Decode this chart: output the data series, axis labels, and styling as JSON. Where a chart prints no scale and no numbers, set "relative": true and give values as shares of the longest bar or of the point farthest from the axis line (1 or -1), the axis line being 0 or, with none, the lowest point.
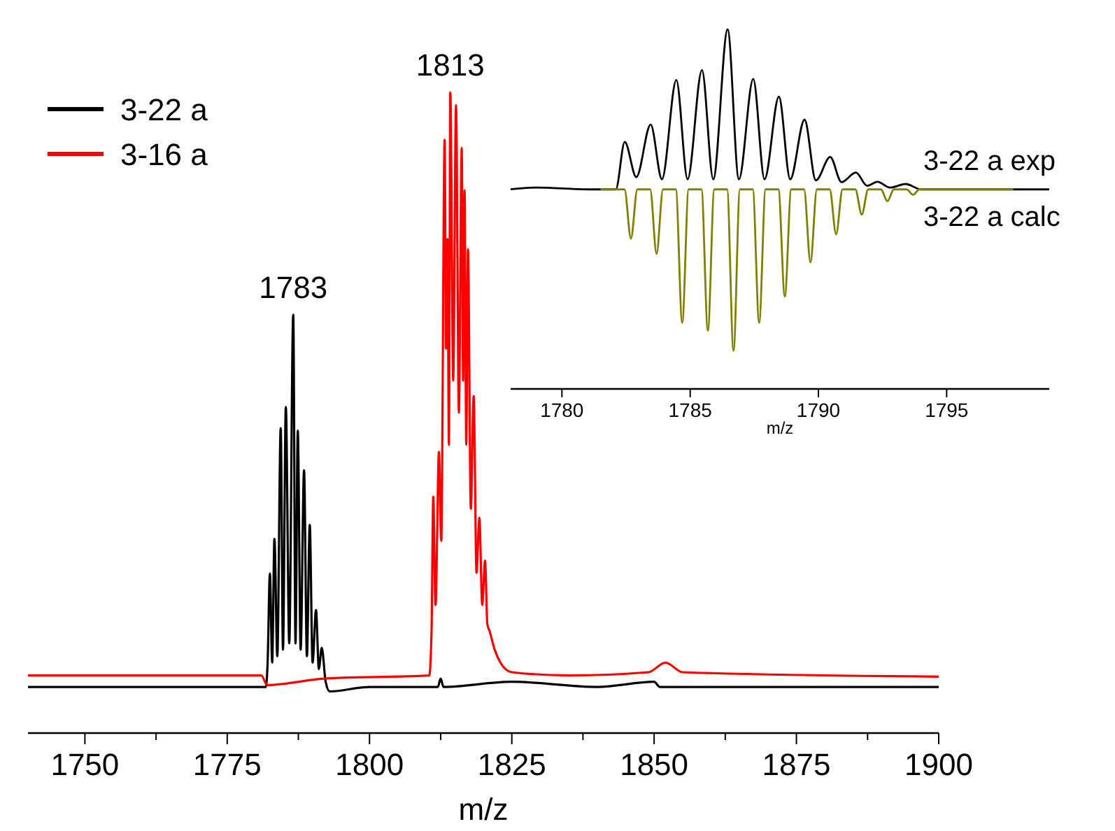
{
  "chart_data": [
    {
      "type": "line",
      "xlabel": "m/z",
      "relative": true,
      "xlim": [
        1740,
        1900
      ],
      "xticks": [
        1750,
        {
          "value": 1762.5,
          "label": null
        },
        1775,
        {
          "value": 1787.5,
          "label": null
        },
        1800,
        {
          "value": 1812.5,
          "label": null
        },
        1825,
        {
          "value": 1837.5,
          "label": null
        },
        1850,
        {
          "value": 1862.5,
          "label": null
        },
        1875,
        {
          "value": 1887.5,
          "label": null
        },
        1900
      ],
      "legend": "top left",
      "grid": false,
      "annotations": [
        {
          "text": "1783",
          "x": 1786.6,
          "y": 0.653
        },
        {
          "text": "1813",
          "x": 1814.2,
          "y": 1
        }
      ],
      "series": [
        {
          "name": "3-22 a",
          "color": "#000000",
          "x": [
            1740,
            1760,
            1781.8,
            1782.1,
            1782.5,
            1782.9,
            1783.3,
            1783.8,
            1784.4,
            1784.8,
            1785.3,
            1785.9,
            1786.6,
            1787.0,
            1787.4,
            1787.9,
            1788.5,
            1789.0,
            1789.5,
            1790.0,
            1790.6,
            1791.1,
            1791.6,
            1792.3,
            1793,
            1800,
            1812,
            1812.5,
            1813,
            1825,
            1840,
            1850,
            1851,
            1900
          ],
          "values": [
            0.072,
            0.072,
            0.072,
            0.11,
            0.249,
            0.11,
            0.303,
            0.12,
            0.476,
            0.13,
            0.509,
            0.14,
            0.653,
            0.14,
            0.472,
            0.13,
            0.41,
            0.12,
            0.325,
            0.11,
            0.192,
            0.1,
            0.133,
            0.08,
            0.065,
            0.072,
            0.072,
            0.085,
            0.072,
            0.08,
            0.072,
            0.08,
            0.072,
            0.072
          ]
        },
        {
          "name": "3-16 a",
          "color": "#ff0000",
          "x": [
            1740,
            1781,
            1782,
            1792,
            1810.5,
            1810.9,
            1811.2,
            1811.6,
            1812.2,
            1812.6,
            1813.2,
            1813.45,
            1813.7,
            1813.95,
            1814.2,
            1814.7,
            1815.2,
            1815.7,
            1816.2,
            1816.45,
            1816.7,
            1817.0,
            1817.3,
            1817.8,
            1818.3,
            1818.8,
            1819.3,
            1819.8,
            1820.3,
            1820.7,
            1821.1,
            1822,
            1823,
            1825,
            1835,
            1849,
            1852,
            1855,
            1900
          ],
          "values": [
            0.09,
            0.09,
            0.075,
            0.085,
            0.09,
            0.16,
            0.369,
            0.2,
            0.439,
            0.3,
            0.926,
            0.6,
            0.771,
            0.45,
            1,
            0.55,
            0.98,
            0.5,
            0.913,
            0.55,
            0.847,
            0.45,
            0.755,
            0.35,
            0.526,
            0.25,
            0.336,
            0.2,
            0.269,
            0.17,
            0.159,
            0.13,
            0.11,
            0.095,
            0.09,
            0.095,
            0.11,
            0.095,
            0.088
          ]
        }
      ]
    },
    {
      "type": "line",
      "xlabel": "m/z",
      "relative": true,
      "xlim": [
        1778,
        1799
      ],
      "xticks": [
        1780,
        1785,
        1790,
        1795
      ],
      "legend": false,
      "grid": false,
      "series": [
        {
          "name": "3-22 a exp",
          "color": "#000000",
          "x": [
            1778,
            1779,
            1781,
            1782.1,
            1782.45,
            1782.9,
            1783.46,
            1783.9,
            1784.46,
            1784.9,
            1785.46,
            1785.9,
            1786.46,
            1786.9,
            1787.46,
            1787.9,
            1788.46,
            1788.9,
            1789.46,
            1789.9,
            1790.46,
            1790.9,
            1791.46,
            1791.9,
            1792.3,
            1792.8,
            1793.4,
            1794,
            1799
          ],
          "values": [
            0.555,
            0.56,
            0.555,
            0.555,
            0.687,
            0.589,
            0.735,
            0.583,
            0.859,
            0.583,
            0.887,
            0.583,
            1.0,
            0.583,
            0.862,
            0.583,
            0.813,
            0.583,
            0.749,
            0.58,
            0.645,
            0.575,
            0.602,
            0.565,
            0.576,
            0.56,
            0.57,
            0.555,
            0.555
          ]
        },
        {
          "name": "3-22 a calc",
          "color": "#808000",
          "x": [
            1781.5,
            1782.44,
            1782.69,
            1782.94,
            1783.44,
            1783.69,
            1783.94,
            1784.44,
            1784.69,
            1784.94,
            1785.44,
            1785.69,
            1785.94,
            1786.44,
            1786.69,
            1786.94,
            1787.44,
            1787.69,
            1787.94,
            1788.44,
            1788.69,
            1788.94,
            1789.44,
            1789.69,
            1789.94,
            1790.44,
            1790.69,
            1790.94,
            1791.44,
            1791.69,
            1791.94,
            1792.44,
            1792.69,
            1792.94,
            1793.44,
            1793.69,
            1793.94,
            1797.6
          ],
          "values": [
            0.555,
            0.555,
            0.418,
            0.555,
            0.555,
            0.376,
            0.555,
            0.555,
            0.184,
            0.555,
            0.555,
            0.162,
            0.555,
            0.555,
            0.106,
            0.555,
            0.555,
            0.184,
            0.555,
            0.555,
            0.257,
            0.555,
            0.555,
            0.352,
            0.555,
            0.555,
            0.43,
            0.555,
            0.555,
            0.485,
            0.555,
            0.555,
            0.522,
            0.555,
            0.555,
            0.54,
            0.555,
            0.555
          ]
        }
      ]
    }
  ]
}
